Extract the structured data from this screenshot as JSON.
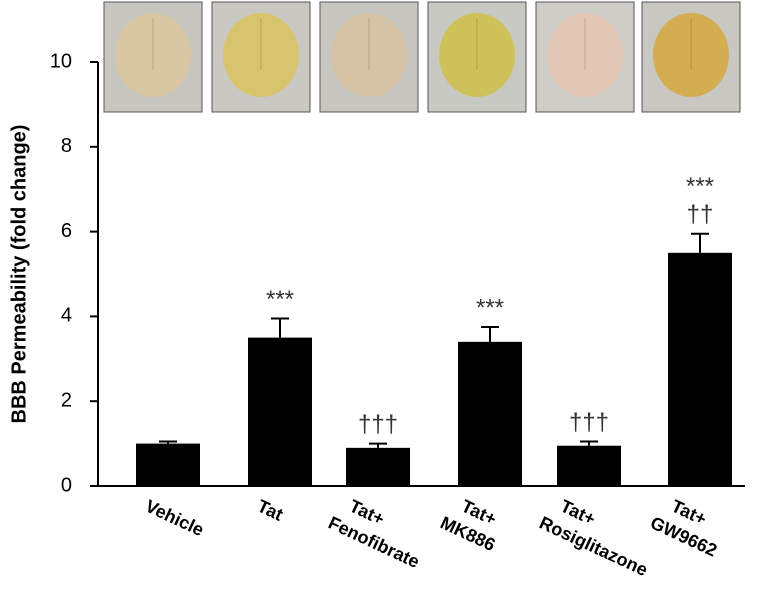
{
  "chart_data": {
    "type": "bar",
    "y_label": "BBB Permeability (fold change)",
    "categories": [
      [
        "Vehicle"
      ],
      [
        "Tat"
      ],
      [
        "Tat+",
        "Fenofibrate"
      ],
      [
        "Tat+",
        "MK886"
      ],
      [
        "Tat+",
        "Rosiglitazone"
      ],
      [
        "Tat+",
        "GW9662"
      ]
    ],
    "values": [
      1.0,
      3.5,
      0.9,
      3.4,
      0.95,
      5.5
    ],
    "errors": [
      0.05,
      0.45,
      0.1,
      0.35,
      0.1,
      0.45
    ],
    "significance_vs_tat": [
      null,
      null,
      "†††",
      null,
      "†††",
      "††"
    ],
    "significance_vs_vehicle": [
      null,
      "***",
      null,
      "***",
      null,
      "***"
    ],
    "color": "#000000",
    "ylim": [
      0,
      10
    ],
    "yticks": [
      0,
      2,
      4,
      6,
      8,
      10
    ]
  }
}
